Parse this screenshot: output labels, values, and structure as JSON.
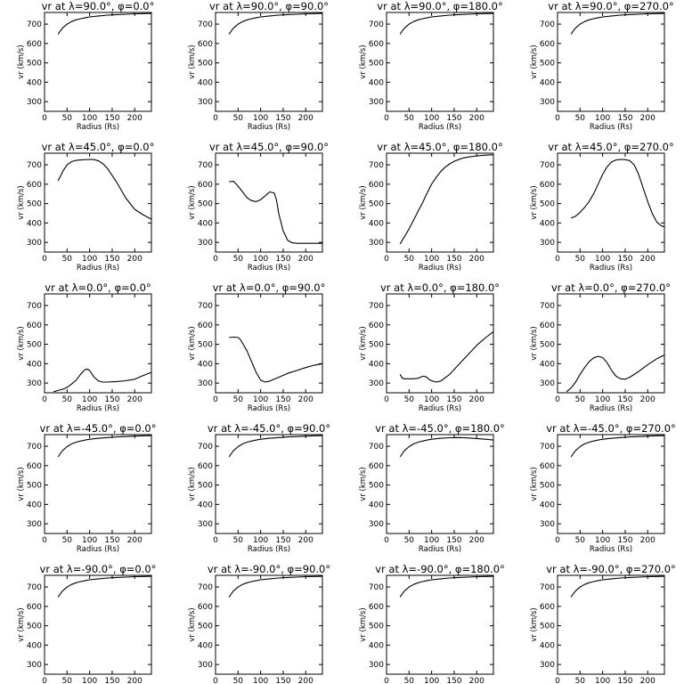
{
  "chart_data": {
    "type": "line",
    "rows": 5,
    "cols": 4,
    "xlabel": "Radius (Rs)",
    "ylabel": "vr (km/s)",
    "xlim": [
      0,
      237
    ],
    "ylim": [
      250,
      760
    ],
    "xticks": [
      0,
      50,
      100,
      150,
      200
    ],
    "yticks": [
      300,
      400,
      500,
      600,
      700
    ],
    "panels": [
      {
        "title": "vr at λ=90.0°, φ=0.0°",
        "x": [
          30,
          35,
          40,
          50,
          60,
          70,
          80,
          90,
          100,
          120,
          140,
          160,
          180,
          200,
          220,
          237
        ],
        "y": [
          648,
          665,
          680,
          700,
          713,
          722,
          728,
          733,
          737,
          742,
          746,
          749,
          751,
          753,
          754,
          755
        ]
      },
      {
        "title": "vr at λ=90.0°, φ=90.0°",
        "x": [
          30,
          35,
          40,
          50,
          60,
          70,
          80,
          90,
          100,
          120,
          140,
          160,
          180,
          200,
          220,
          237
        ],
        "y": [
          648,
          665,
          680,
          700,
          713,
          722,
          728,
          733,
          737,
          742,
          746,
          749,
          751,
          753,
          754,
          755
        ]
      },
      {
        "title": "vr at λ=90.0°, φ=180.0°",
        "x": [
          30,
          35,
          40,
          50,
          60,
          70,
          80,
          90,
          100,
          120,
          140,
          160,
          180,
          200,
          220,
          237
        ],
        "y": [
          648,
          665,
          680,
          700,
          713,
          722,
          728,
          733,
          737,
          742,
          746,
          749,
          751,
          753,
          754,
          755
        ]
      },
      {
        "title": "vr at λ=90.0°, φ=270.0°",
        "x": [
          30,
          35,
          40,
          50,
          60,
          70,
          80,
          90,
          100,
          120,
          140,
          160,
          180,
          200,
          220,
          237
        ],
        "y": [
          648,
          665,
          680,
          700,
          713,
          722,
          728,
          733,
          737,
          742,
          746,
          749,
          751,
          753,
          754,
          755
        ]
      },
      {
        "title": "vr at λ=45.0°, φ=0.0°",
        "x": [
          30,
          35,
          40,
          50,
          60,
          70,
          80,
          100,
          110,
          120,
          130,
          140,
          160,
          180,
          200,
          220,
          237
        ],
        "y": [
          618,
          640,
          665,
          700,
          717,
          723,
          725,
          728,
          727,
          720,
          705,
          680,
          610,
          530,
          470,
          440,
          420
        ]
      },
      {
        "title": "vr at λ=45.0°, φ=90.0°",
        "x": [
          30,
          40,
          50,
          60,
          70,
          80,
          90,
          100,
          110,
          120,
          130,
          135,
          140,
          150,
          160,
          170,
          180,
          200,
          220,
          237
        ],
        "y": [
          613,
          615,
          590,
          560,
          530,
          515,
          510,
          520,
          540,
          560,
          555,
          520,
          450,
          360,
          310,
          298,
          295,
          295,
          295,
          295
        ]
      },
      {
        "title": "vr at λ=45.0°, φ=180.0°",
        "x": [
          30,
          40,
          50,
          60,
          70,
          80,
          90,
          100,
          110,
          120,
          130,
          140,
          150,
          160,
          170,
          180,
          200,
          220,
          237
        ],
        "y": [
          292,
          330,
          370,
          415,
          460,
          505,
          555,
          600,
          635,
          665,
          688,
          705,
          718,
          727,
          735,
          740,
          746,
          750,
          752
        ]
      },
      {
        "title": "vr at λ=45.0°, φ=270.0°",
        "x": [
          30,
          40,
          50,
          60,
          70,
          80,
          90,
          100,
          110,
          120,
          130,
          140,
          150,
          160,
          170,
          180,
          190,
          200,
          210,
          220,
          230,
          237
        ],
        "y": [
          425,
          435,
          455,
          480,
          510,
          550,
          600,
          650,
          690,
          715,
          725,
          728,
          727,
          722,
          700,
          650,
          580,
          510,
          450,
          405,
          385,
          380
        ]
      },
      {
        "title": "vr at λ=0.0°, φ=0.0°",
        "x": [
          20,
          30,
          40,
          50,
          60,
          70,
          80,
          90,
          95,
          100,
          110,
          120,
          130,
          140,
          160,
          180,
          200,
          220,
          237
        ],
        "y": [
          255,
          262,
          268,
          278,
          295,
          315,
          345,
          370,
          372,
          365,
          330,
          310,
          305,
          305,
          308,
          312,
          320,
          340,
          355
        ]
      },
      {
        "title": "vr at λ=0.0°, φ=90.0°",
        "x": [
          30,
          40,
          50,
          55,
          60,
          70,
          80,
          90,
          100,
          110,
          120,
          140,
          160,
          180,
          200,
          220,
          237
        ],
        "y": [
          535,
          537,
          535,
          525,
          505,
          465,
          410,
          355,
          315,
          305,
          310,
          330,
          350,
          365,
          380,
          393,
          400
        ]
      },
      {
        "title": "vr at λ=0.0°, φ=180.0°",
        "x": [
          30,
          35,
          40,
          50,
          60,
          70,
          80,
          85,
          90,
          95,
          100,
          110,
          120,
          140,
          160,
          180,
          200,
          220,
          237
        ],
        "y": [
          345,
          325,
          322,
          322,
          322,
          325,
          335,
          335,
          328,
          318,
          312,
          305,
          310,
          345,
          395,
          445,
          495,
          535,
          565
        ]
      },
      {
        "title": "vr at λ=0.0°, φ=270.0°",
        "x": [
          20,
          30,
          40,
          50,
          60,
          70,
          80,
          90,
          100,
          110,
          120,
          130,
          140,
          150,
          160,
          180,
          200,
          220,
          237
        ],
        "y": [
          255,
          275,
          305,
          345,
          380,
          410,
          430,
          438,
          432,
          405,
          365,
          335,
          322,
          320,
          330,
          360,
          395,
          425,
          445
        ]
      },
      {
        "title": "vr at λ=-45.0°, φ=0.0°",
        "x": [
          30,
          35,
          40,
          50,
          60,
          70,
          80,
          90,
          100,
          120,
          140,
          160,
          180,
          200,
          220,
          237
        ],
        "y": [
          645,
          662,
          678,
          698,
          712,
          721,
          727,
          732,
          736,
          741,
          745,
          748,
          750,
          752,
          754,
          755
        ]
      },
      {
        "title": "vr at λ=-45.0°, φ=90.0°",
        "x": [
          30,
          35,
          40,
          50,
          60,
          70,
          80,
          90,
          100,
          120,
          140,
          160,
          180,
          200,
          220,
          237
        ],
        "y": [
          645,
          662,
          678,
          698,
          712,
          721,
          727,
          732,
          736,
          741,
          745,
          748,
          750,
          752,
          754,
          755
        ]
      },
      {
        "title": "vr at λ=-45.0°, φ=180.0°",
        "x": [
          30,
          35,
          40,
          50,
          60,
          70,
          80,
          90,
          100,
          120,
          140,
          160,
          180,
          200,
          220,
          237
        ],
        "y": [
          645,
          662,
          678,
          698,
          712,
          721,
          727,
          732,
          736,
          741,
          744,
          745,
          743,
          740,
          736,
          732
        ]
      },
      {
        "title": "vr at λ=-45.0°, φ=270.0°",
        "x": [
          30,
          35,
          40,
          50,
          60,
          70,
          80,
          90,
          100,
          120,
          140,
          160,
          180,
          200,
          220,
          237
        ],
        "y": [
          645,
          662,
          678,
          698,
          712,
          721,
          727,
          732,
          736,
          741,
          745,
          748,
          750,
          752,
          754,
          755
        ]
      },
      {
        "title": "vr at λ=-90.0°, φ=0.0°",
        "x": [
          30,
          35,
          40,
          50,
          60,
          70,
          80,
          90,
          100,
          120,
          140,
          160,
          180,
          200,
          220,
          237
        ],
        "y": [
          648,
          665,
          680,
          700,
          713,
          722,
          728,
          733,
          737,
          742,
          746,
          749,
          751,
          753,
          754,
          755
        ]
      },
      {
        "title": "vr at λ=-90.0°, φ=90.0°",
        "x": [
          30,
          35,
          40,
          50,
          60,
          70,
          80,
          90,
          100,
          120,
          140,
          160,
          180,
          200,
          220,
          237
        ],
        "y": [
          648,
          665,
          680,
          700,
          713,
          722,
          728,
          733,
          737,
          742,
          746,
          749,
          751,
          753,
          754,
          755
        ]
      },
      {
        "title": "vr at λ=-90.0°, φ=180.0°",
        "x": [
          30,
          35,
          40,
          50,
          60,
          70,
          80,
          90,
          100,
          120,
          140,
          160,
          180,
          200,
          220,
          237
        ],
        "y": [
          648,
          665,
          680,
          700,
          713,
          722,
          728,
          733,
          737,
          742,
          746,
          749,
          751,
          753,
          754,
          755
        ]
      },
      {
        "title": "vr at λ=-90.0°, φ=270.0°",
        "x": [
          30,
          35,
          40,
          50,
          60,
          70,
          80,
          90,
          100,
          120,
          140,
          160,
          180,
          200,
          220,
          237
        ],
        "y": [
          648,
          665,
          680,
          700,
          713,
          722,
          728,
          733,
          737,
          742,
          746,
          749,
          751,
          753,
          754,
          755
        ]
      }
    ]
  }
}
